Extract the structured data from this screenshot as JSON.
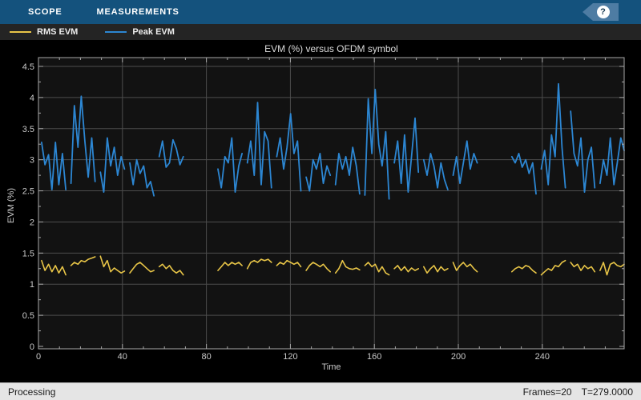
{
  "toolbar": {
    "tabs": [
      {
        "label": "SCOPE"
      },
      {
        "label": "MEASUREMENTS"
      }
    ],
    "help_label": "?"
  },
  "legend": {
    "items": [
      {
        "label": "RMS EVM",
        "color": "#E8C547"
      },
      {
        "label": "Peak EVM",
        "color": "#2C86D2"
      }
    ]
  },
  "status_bar": {
    "left": "Processing",
    "frames": "Frames=20",
    "time": "T=279.0000"
  },
  "colors": {
    "toolbar_bg": "#14527D",
    "help_flag": "#4E7CA3",
    "legend_bg": "#242424",
    "plot_outer_bg": "#000000",
    "plot_inner_bg": "#121212",
    "grid": "#4D4D4D",
    "axis": "#A8A8A8",
    "tick_label": "#C9C9C9",
    "status_bg": "#E5E5E5"
  },
  "chart_data": {
    "type": "line",
    "title": "EVM (%) versus OFDM symbol",
    "xlabel": "Time",
    "ylabel": "EVM (%)",
    "xlim": [
      0,
      279
    ],
    "ylim": [
      0,
      4.5
    ],
    "xticks": [
      0,
      40,
      80,
      120,
      160,
      200,
      240
    ],
    "yticks": [
      0,
      0.5,
      1,
      1.5,
      2,
      2.5,
      3,
      3.5,
      4,
      4.5
    ],
    "x_minor_step": 10,
    "y_minor_step": 0.25,
    "grid": true,
    "legend_position": "top-strip",
    "series": [
      {
        "name": "RMS EVM",
        "color": "#E8C547",
        "width": 1.6,
        "points": [
          [
            1.5,
            1.38
          ],
          [
            3.1,
            1.22
          ],
          [
            4.8,
            1.32
          ],
          [
            6.4,
            1.2
          ],
          [
            8.1,
            1.3
          ],
          [
            9.7,
            1.18
          ],
          [
            11.4,
            1.28
          ],
          [
            13,
            1.15
          ],
          null,
          [
            15.5,
            1.3
          ],
          [
            17.1,
            1.35
          ],
          [
            18.8,
            1.32
          ],
          [
            20.4,
            1.38
          ],
          [
            22.1,
            1.36
          ],
          [
            23.7,
            1.4
          ],
          [
            25.4,
            1.42
          ],
          [
            27,
            1.44
          ],
          null,
          [
            29.5,
            1.45
          ],
          [
            31.1,
            1.28
          ],
          [
            32.8,
            1.38
          ],
          [
            34.4,
            1.2
          ],
          [
            36.1,
            1.26
          ],
          [
            37.7,
            1.22
          ],
          [
            39.4,
            1.18
          ],
          [
            41,
            1.21
          ],
          null,
          [
            43.5,
            1.18
          ],
          [
            45.1,
            1.25
          ],
          [
            46.8,
            1.32
          ],
          [
            48.4,
            1.35
          ],
          [
            50.1,
            1.3
          ],
          [
            51.7,
            1.25
          ],
          [
            53.4,
            1.2
          ],
          [
            55,
            1.22
          ],
          null,
          [
            57.5,
            1.28
          ],
          [
            59.1,
            1.32
          ],
          [
            60.8,
            1.25
          ],
          [
            62.4,
            1.3
          ],
          [
            64.1,
            1.22
          ],
          [
            65.7,
            1.18
          ],
          [
            67.4,
            1.22
          ],
          [
            69,
            1.15
          ],
          null,
          [
            85.5,
            1.22
          ],
          [
            87.1,
            1.28
          ],
          [
            88.8,
            1.35
          ],
          [
            90.4,
            1.3
          ],
          [
            92.1,
            1.35
          ],
          [
            93.7,
            1.32
          ],
          [
            95.4,
            1.35
          ],
          [
            97,
            1.3
          ],
          null,
          [
            99.5,
            1.25
          ],
          [
            101.1,
            1.35
          ],
          [
            102.8,
            1.38
          ],
          [
            104.4,
            1.35
          ],
          [
            106.1,
            1.4
          ],
          [
            107.7,
            1.38
          ],
          [
            109.4,
            1.4
          ],
          [
            111,
            1.35
          ],
          null,
          [
            113.5,
            1.3
          ],
          [
            115.1,
            1.35
          ],
          [
            116.8,
            1.32
          ],
          [
            118.4,
            1.38
          ],
          [
            120.1,
            1.35
          ],
          [
            121.7,
            1.32
          ],
          [
            123.4,
            1.35
          ],
          [
            125,
            1.28
          ],
          null,
          [
            127.5,
            1.22
          ],
          [
            129.1,
            1.3
          ],
          [
            130.8,
            1.35
          ],
          [
            132.4,
            1.32
          ],
          [
            134.1,
            1.28
          ],
          [
            135.7,
            1.32
          ],
          [
            137.4,
            1.25
          ],
          [
            139,
            1.2
          ],
          null,
          [
            141.5,
            1.18
          ],
          [
            143.1,
            1.25
          ],
          [
            144.8,
            1.38
          ],
          [
            146.4,
            1.28
          ],
          [
            148.1,
            1.25
          ],
          [
            149.7,
            1.24
          ],
          [
            151.4,
            1.26
          ],
          [
            153,
            1.23
          ],
          null,
          [
            155.5,
            1.3
          ],
          [
            157.1,
            1.35
          ],
          [
            158.8,
            1.28
          ],
          [
            160.4,
            1.32
          ],
          [
            162.1,
            1.2
          ],
          [
            163.7,
            1.28
          ],
          [
            165.4,
            1.18
          ],
          [
            167,
            1.15
          ],
          null,
          [
            169.5,
            1.25
          ],
          [
            171.1,
            1.3
          ],
          [
            172.8,
            1.22
          ],
          [
            174.4,
            1.28
          ],
          [
            176.1,
            1.2
          ],
          [
            177.7,
            1.26
          ],
          [
            179.4,
            1.22
          ],
          [
            181,
            1.25
          ],
          null,
          [
            183.5,
            1.28
          ],
          [
            185.1,
            1.18
          ],
          [
            186.8,
            1.25
          ],
          [
            188.4,
            1.3
          ],
          [
            190.1,
            1.2
          ],
          [
            191.7,
            1.28
          ],
          [
            193.4,
            1.22
          ],
          [
            195,
            1.25
          ],
          null,
          [
            197.5,
            1.35
          ],
          [
            199.1,
            1.22
          ],
          [
            200.8,
            1.3
          ],
          [
            202.4,
            1.35
          ],
          [
            204.1,
            1.28
          ],
          [
            205.7,
            1.32
          ],
          [
            207.4,
            1.25
          ],
          [
            209,
            1.2
          ],
          null,
          [
            225.5,
            1.2
          ],
          [
            227.1,
            1.25
          ],
          [
            228.8,
            1.28
          ],
          [
            230.4,
            1.25
          ],
          [
            232.1,
            1.3
          ],
          [
            233.7,
            1.28
          ],
          [
            235.4,
            1.22
          ],
          [
            237,
            1.18
          ],
          null,
          [
            239.5,
            1.15
          ],
          [
            241.1,
            1.2
          ],
          [
            242.8,
            1.25
          ],
          [
            244.4,
            1.22
          ],
          [
            246.1,
            1.3
          ],
          [
            247.7,
            1.28
          ],
          [
            249.4,
            1.35
          ],
          [
            251,
            1.38
          ],
          null,
          [
            253.5,
            1.35
          ],
          [
            255.1,
            1.28
          ],
          [
            256.8,
            1.32
          ],
          [
            258.4,
            1.22
          ],
          [
            260.1,
            1.3
          ],
          [
            261.7,
            1.25
          ],
          [
            263.4,
            1.28
          ],
          [
            265,
            1.2
          ],
          null,
          [
            267.5,
            1.22
          ],
          [
            269.1,
            1.35
          ],
          [
            270.8,
            1.15
          ],
          [
            272.4,
            1.32
          ],
          [
            274.1,
            1.35
          ],
          [
            275.7,
            1.3
          ],
          [
            277.4,
            1.28
          ],
          [
            279,
            1.32
          ]
        ]
      },
      {
        "name": "Peak EVM",
        "color": "#2C86D2",
        "width": 1.8,
        "points": [
          [
            1.5,
            3.28
          ],
          [
            3.1,
            2.92
          ],
          [
            4.8,
            3.08
          ],
          [
            6.4,
            2.52
          ],
          [
            8.1,
            3.28
          ],
          [
            9.7,
            2.6
          ],
          [
            11.4,
            3.1
          ],
          [
            13,
            2.52
          ],
          null,
          [
            15.5,
            2.62
          ],
          [
            17.1,
            3.87
          ],
          [
            18.8,
            3.2
          ],
          [
            20.4,
            4.02
          ],
          [
            22.1,
            3.3
          ],
          [
            23.7,
            2.72
          ],
          [
            25.4,
            3.35
          ],
          [
            27,
            2.65
          ],
          null,
          [
            29.5,
            2.8
          ],
          [
            31.1,
            2.48
          ],
          [
            32.8,
            3.35
          ],
          [
            34.4,
            2.9
          ],
          [
            36.1,
            3.2
          ],
          [
            37.7,
            2.75
          ],
          [
            39.4,
            3.05
          ],
          [
            41,
            2.85
          ],
          null,
          [
            43.5,
            2.95
          ],
          [
            45.1,
            2.6
          ],
          [
            46.8,
            3.0
          ],
          [
            48.4,
            2.78
          ],
          [
            50.1,
            2.9
          ],
          [
            51.7,
            2.55
          ],
          [
            53.4,
            2.65
          ],
          [
            55,
            2.42
          ],
          null,
          [
            57.5,
            3.05
          ],
          [
            59.1,
            3.3
          ],
          [
            60.8,
            2.88
          ],
          [
            62.4,
            2.95
          ],
          [
            64.1,
            3.32
          ],
          [
            65.7,
            3.18
          ],
          [
            67.4,
            2.92
          ],
          [
            69,
            3.05
          ],
          null,
          [
            85.5,
            2.85
          ],
          [
            87.1,
            2.55
          ],
          [
            88.8,
            3.05
          ],
          [
            90.4,
            2.95
          ],
          [
            92.1,
            3.35
          ],
          [
            93.7,
            2.48
          ],
          [
            95.4,
            2.9
          ],
          [
            97,
            3.1
          ],
          null,
          [
            99.5,
            2.95
          ],
          [
            101.1,
            3.3
          ],
          [
            102.8,
            2.75
          ],
          [
            104.4,
            3.92
          ],
          [
            106.1,
            2.6
          ],
          [
            107.7,
            3.45
          ],
          [
            109.4,
            3.3
          ],
          [
            111,
            2.55
          ],
          null,
          [
            113.5,
            3.05
          ],
          [
            115.1,
            3.35
          ],
          [
            116.8,
            2.85
          ],
          [
            118.4,
            3.2
          ],
          [
            120.1,
            3.74
          ],
          [
            121.7,
            3.1
          ],
          [
            123.4,
            3.3
          ],
          [
            125,
            2.5
          ],
          null,
          [
            127.5,
            2.72
          ],
          [
            129.1,
            2.5
          ],
          [
            130.8,
            3.0
          ],
          [
            132.4,
            2.85
          ],
          [
            134.1,
            3.1
          ],
          [
            135.7,
            2.62
          ],
          [
            137.4,
            2.9
          ],
          [
            139,
            2.75
          ],
          null,
          [
            141.5,
            2.6
          ],
          [
            143.1,
            3.1
          ],
          [
            144.8,
            2.85
          ],
          [
            146.4,
            3.05
          ],
          [
            148.1,
            2.75
          ],
          [
            149.7,
            3.2
          ],
          [
            151.4,
            2.9
          ],
          [
            153,
            2.45
          ],
          null,
          [
            155.5,
            2.43
          ],
          [
            157.1,
            3.98
          ],
          [
            158.8,
            3.1
          ],
          [
            160.4,
            4.13
          ],
          [
            162.1,
            3.25
          ],
          [
            163.7,
            2.9
          ],
          [
            165.4,
            3.45
          ],
          [
            167,
            2.37
          ],
          null,
          [
            169.5,
            2.95
          ],
          [
            171.1,
            3.3
          ],
          [
            172.8,
            2.62
          ],
          [
            174.4,
            3.4
          ],
          [
            176.1,
            2.48
          ],
          [
            177.7,
            3.05
          ],
          [
            179.4,
            3.67
          ],
          [
            181,
            2.8
          ],
          null,
          [
            183.5,
            3.0
          ],
          [
            185.1,
            2.75
          ],
          [
            186.8,
            3.1
          ],
          [
            188.4,
            2.9
          ],
          [
            190.1,
            2.55
          ],
          [
            191.7,
            2.95
          ],
          [
            193.4,
            2.68
          ],
          [
            195,
            2.52
          ],
          null,
          [
            197.5,
            2.75
          ],
          [
            199.1,
            3.05
          ],
          [
            200.8,
            2.62
          ],
          [
            202.4,
            2.95
          ],
          [
            204.1,
            3.3
          ],
          [
            205.7,
            2.85
          ],
          [
            207.4,
            3.1
          ],
          [
            209,
            2.95
          ],
          null,
          [
            225.5,
            3.05
          ],
          [
            227.1,
            2.95
          ],
          [
            228.8,
            3.1
          ],
          [
            230.4,
            2.88
          ],
          [
            232.1,
            3.0
          ],
          [
            233.7,
            2.78
          ],
          [
            235.4,
            2.95
          ],
          [
            237,
            2.45
          ],
          null,
          [
            239.5,
            2.85
          ],
          [
            241.1,
            3.15
          ],
          [
            242.8,
            2.6
          ],
          [
            244.4,
            3.4
          ],
          [
            246.1,
            3.05
          ],
          [
            247.7,
            4.22
          ],
          [
            249.4,
            3.2
          ],
          [
            251,
            2.55
          ],
          null,
          [
            253.5,
            3.78
          ],
          [
            255.1,
            3.1
          ],
          [
            256.8,
            2.9
          ],
          [
            258.4,
            3.35
          ],
          [
            260.1,
            2.48
          ],
          [
            261.7,
            3.0
          ],
          [
            263.4,
            3.2
          ],
          [
            265,
            2.55
          ],
          null,
          [
            267.5,
            2.62
          ],
          [
            269.1,
            3.0
          ],
          [
            270.8,
            2.75
          ],
          [
            272.4,
            3.35
          ],
          [
            274.1,
            2.6
          ],
          [
            275.7,
            2.95
          ],
          [
            277.4,
            3.35
          ],
          [
            279,
            3.15
          ]
        ]
      }
    ]
  }
}
